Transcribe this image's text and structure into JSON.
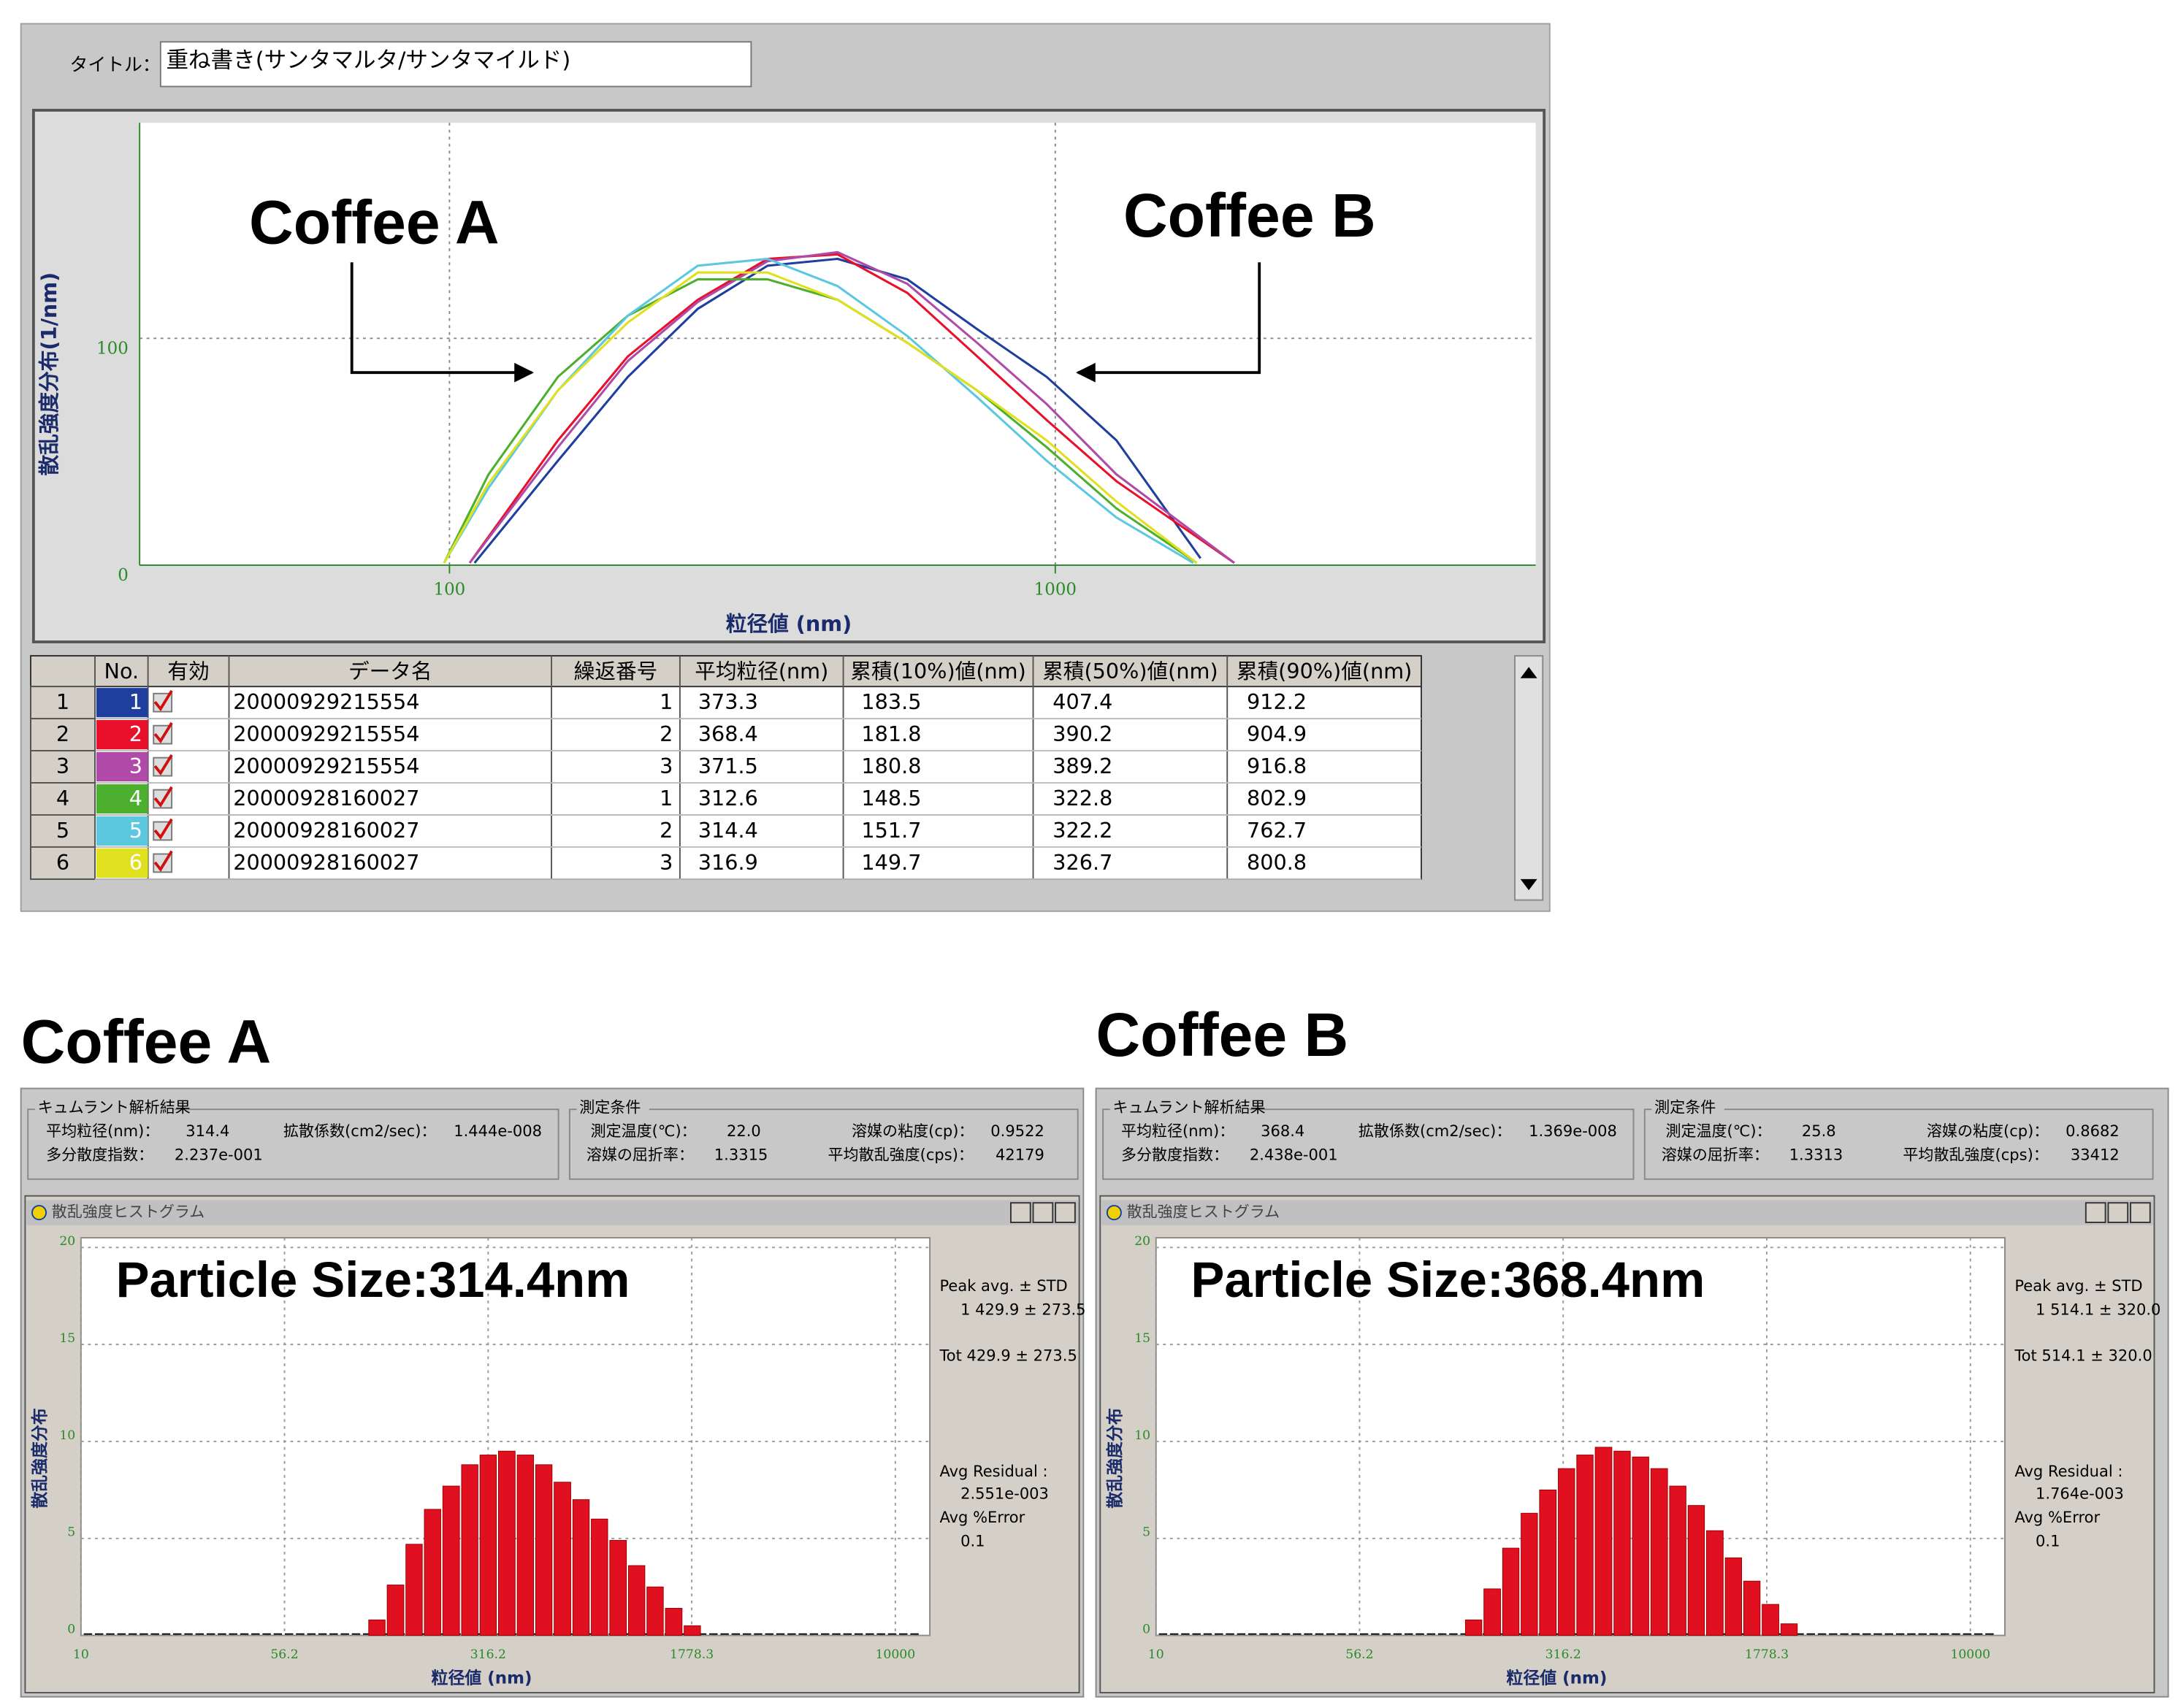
{
  "title_field": {
    "label": "タイトル：",
    "value": "重ね書き(サンタマルタ/サンタマイルド)"
  },
  "chart_data": [
    {
      "type": "line",
      "ylabel": "散乱強度分布(1/nm)",
      "xlabel": "粒径値 (nm)",
      "annotations": [
        "Coffee A",
        "Coffee B"
      ],
      "log_x": true,
      "grid": true,
      "xlim": [
        30.8,
        6210
      ],
      "ylim": [
        0,
        195
      ],
      "xticks": [
        100,
        1000
      ],
      "yticks": [
        0,
        100
      ],
      "series": [
        {
          "color": "#1f3f9f",
          "x": [
            110,
            151,
            197,
            257,
            335,
            437,
            570,
            743,
            968,
            1262,
            1737
          ],
          "values": [
            1,
            46,
            83,
            113,
            132,
            135,
            126,
            104,
            83,
            55,
            3
          ]
        },
        {
          "color": "#e8102a",
          "x": [
            108,
            151,
            197,
            257,
            335,
            437,
            570,
            743,
            968,
            1262,
            1975
          ],
          "values": [
            1,
            55,
            92,
            117,
            135,
            137,
            120,
            92,
            64,
            37,
            1
          ]
        },
        {
          "color": "#b04aa8",
          "x": [
            108,
            151,
            197,
            257,
            335,
            437,
            570,
            743,
            968,
            1262,
            1975
          ],
          "values": [
            1,
            52,
            90,
            116,
            134,
            138,
            124,
            98,
            71,
            40,
            1
          ]
        },
        {
          "color": "#4caf2e",
          "x": [
            98,
            116,
            151,
            197,
            257,
            335,
            437,
            570,
            743,
            968,
            1262,
            1712
          ],
          "values": [
            1,
            40,
            83,
            110,
            126,
            126,
            117,
            98,
            77,
            52,
            25,
            1
          ]
        },
        {
          "color": "#5cc8e0",
          "x": [
            98,
            116,
            151,
            197,
            257,
            335,
            437,
            570,
            743,
            968,
            1262,
            1690
          ],
          "values": [
            1,
            34,
            77,
            110,
            132,
            135,
            123,
            101,
            74,
            46,
            21,
            1
          ]
        },
        {
          "color": "#e0e020",
          "x": [
            98,
            116,
            151,
            197,
            257,
            335,
            437,
            570,
            743,
            968,
            1262,
            1712
          ],
          "values": [
            1,
            36,
            77,
            107,
            129,
            129,
            117,
            98,
            77,
            55,
            28,
            1
          ]
        }
      ]
    },
    {
      "type": "histogram",
      "title": "散乱強度ヒストグラム",
      "ylabel": "散乱強度分布",
      "xlabel": "粒径値 (nm)",
      "annotation": "Particle Size:314.4nm",
      "log_x": true,
      "grid": true,
      "color": "#e01020",
      "xlim": [
        10,
        13400
      ],
      "ylim": [
        0,
        20.5
      ],
      "xticks": [
        10,
        56.2,
        316.2,
        1778.3,
        10000
      ],
      "yticks": [
        0,
        5,
        10,
        15,
        20
      ],
      "bins": [
        114.8,
        134.3,
        157.4,
        184.1,
        215.3,
        252.4,
        295.1,
        345.1,
        404.6,
        473.2,
        553.4,
        648.6,
        758.6,
        887.2,
        1039.9,
        1216.2,
        1422.3,
        1667.2,
        1949.8
      ],
      "values": [
        0.8,
        2.6,
        4.7,
        6.5,
        7.7,
        8.8,
        9.3,
        9.5,
        9.3,
        8.8,
        7.9,
        7.0,
        6.0,
        4.9,
        3.6,
        2.5,
        1.4,
        0.5
      ],
      "side_text": [
        "Peak avg. ± STD",
        "1 429.9 ± 273.5",
        "Tot 429.9 ± 273.5",
        "Avg Residual :",
        "2.551e-003",
        "Avg %Error",
        "0.1"
      ]
    },
    {
      "type": "histogram",
      "title": "散乱強度ヒストグラム",
      "ylabel": "散乱強度分布",
      "xlabel": "粒径値 (nm)",
      "annotation": "Particle Size:368.4nm",
      "log_x": true,
      "grid": true,
      "color": "#e01020",
      "xlim": [
        10,
        13400
      ],
      "ylim": [
        0,
        20.5
      ],
      "xticks": [
        10,
        56.2,
        316.2,
        1778.3,
        10000
      ],
      "yticks": [
        0,
        5,
        10,
        15,
        20
      ],
      "bins": [
        138.0,
        161.4,
        189.2,
        221.3,
        258.8,
        303.4,
        354.8,
        414.9,
        486.4,
        568.9,
        665.3,
        779.9,
        912.1,
        1066.7,
        1250.3,
        1462.2,
        1710.0,
        2004.5,
        2344.2
      ],
      "values": [
        0.8,
        2.4,
        4.5,
        6.3,
        7.5,
        8.6,
        9.3,
        9.7,
        9.5,
        9.2,
        8.6,
        7.7,
        6.7,
        5.4,
        4.0,
        2.8,
        1.6,
        0.6
      ],
      "side_text": [
        "Peak avg. ± STD",
        "1 514.1 ± 320.0",
        "Tot 514.1 ± 320.0",
        "Avg Residual :",
        "1.764e-003",
        "Avg %Error",
        "0.1"
      ]
    }
  ],
  "table": {
    "columns": [
      "No.",
      "有効",
      "データ名",
      "繰返番号",
      "平均粒径(nm)",
      "累積(10%)値(nm)",
      "累積(50%)値(nm)",
      "累積(90%)値(nm)"
    ],
    "rows": [
      {
        "label": "1",
        "no": "1",
        "color": "#1f3f9f",
        "cells": [
          "20000929215554",
          1,
          373.3,
          183.5,
          407.4,
          912.2
        ]
      },
      {
        "label": "2",
        "no": "2",
        "color": "#e8102a",
        "cells": [
          "20000929215554",
          2,
          368.4,
          181.8,
          390.2,
          904.9
        ]
      },
      {
        "label": "3",
        "no": "3",
        "color": "#b04aa8",
        "cells": [
          "20000929215554",
          3,
          371.5,
          180.8,
          389.2,
          916.8
        ]
      },
      {
        "label": "4",
        "no": "4",
        "color": "#4caf2e",
        "cells": [
          "20000928160027",
          1,
          312.6,
          148.5,
          322.8,
          802.9
        ]
      },
      {
        "label": "5",
        "no": "5",
        "color": "#5cc8e0",
        "cells": [
          "20000928160027",
          2,
          314.4,
          151.7,
          322.2,
          762.7
        ]
      },
      {
        "label": "6",
        "no": "6",
        "color": "#e0e020",
        "cells": [
          "20000928160027",
          3,
          316.9,
          149.7,
          326.7,
          800.8
        ]
      }
    ]
  },
  "samples": [
    {
      "heading": "Coffee A",
      "cumulant": {
        "title": "キュムラント解析結果",
        "items": [
          {
            "label": "平均粒径(nm)：",
            "value": "314.4"
          },
          {
            "label": "拡散係数(cm2/sec)：",
            "value": "1.444e-008"
          },
          {
            "label": "多分散度指数：",
            "value": "2.237e-001"
          }
        ]
      },
      "conditions": {
        "title": "測定条件",
        "items": [
          {
            "label": "測定温度(℃)：",
            "value": "22.0"
          },
          {
            "label": "溶媒の粘度(cp)：",
            "value": "0.9522"
          },
          {
            "label": "溶媒の屈折率：",
            "value": "1.3315"
          },
          {
            "label": "平均散乱強度(cps)：",
            "value": "42179"
          }
        ]
      }
    },
    {
      "heading": "Coffee B",
      "cumulant": {
        "title": "キュムラント解析結果",
        "items": [
          {
            "label": "平均粒径(nm)：",
            "value": "368.4"
          },
          {
            "label": "拡散係数(cm2/sec)：",
            "value": "1.369e-008"
          },
          {
            "label": "多分散度指数：",
            "value": "2.438e-001"
          }
        ]
      },
      "conditions": {
        "title": "測定条件",
        "items": [
          {
            "label": "測定温度(℃)：",
            "value": "25.8"
          },
          {
            "label": "溶媒の粘度(cp)：",
            "value": "0.8682"
          },
          {
            "label": "溶媒の屈折率：",
            "value": "1.3313"
          },
          {
            "label": "平均散乱強度(cps)：",
            "value": "33412"
          }
        ]
      }
    }
  ]
}
